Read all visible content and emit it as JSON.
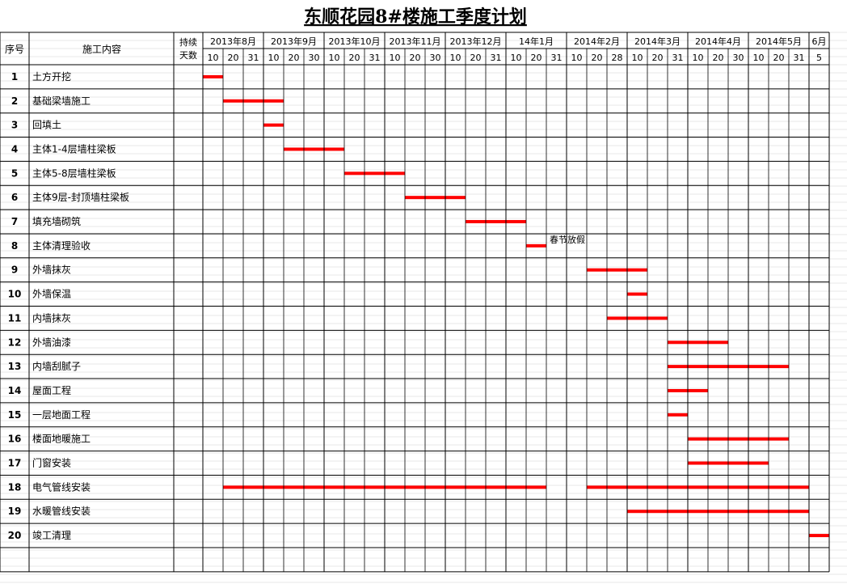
{
  "title": "东顺花园8#楼施工季度计划",
  "header": {
    "seq_label": "序号",
    "content_label": "施工内容",
    "duration_label_1": "持续",
    "duration_label_2": "天数"
  },
  "months": [
    "2013年8月",
    "2013年9月",
    "2013年10月",
    "2013年11月",
    "2013年12月",
    "14年1月",
    "2014年2月",
    "2014年3月",
    "2014年4月",
    "2014年5月",
    "6月"
  ],
  "day_ticks": [
    "10",
    "20",
    "31",
    "10",
    "20",
    "30",
    "10",
    "20",
    "31",
    "10",
    "20",
    "30",
    "10",
    "20",
    "31",
    "10",
    "20",
    "31",
    "10",
    "20",
    "28",
    "10",
    "20",
    "31",
    "10",
    "20",
    "30",
    "10",
    "20",
    "31",
    "5"
  ],
  "annotation": "春节放假",
  "colors": {
    "bar": "#ff0000",
    "grid": "#000000",
    "light_grid": "#d0d0d0"
  },
  "chart_data": {
    "type": "gantt",
    "title": "东顺花园8#楼施工季度计划",
    "x_unit": "period (10-day column)",
    "tasks": [
      {
        "seq": "1",
        "name": "土方开挖",
        "start": "2013-08-01",
        "end": "2013-08-10"
      },
      {
        "seq": "2",
        "name": "基础梁墙施工",
        "start": "2013-08-11",
        "end": "2013-09-10"
      },
      {
        "seq": "3",
        "name": "回填土",
        "start": "2013-09-01",
        "end": "2013-09-10"
      },
      {
        "seq": "4",
        "name": "主体1-4层墙柱梁板",
        "start": "2013-09-11",
        "end": "2013-10-10"
      },
      {
        "seq": "5",
        "name": "主体5-8层墙柱梁板",
        "start": "2013-10-11",
        "end": "2013-11-10"
      },
      {
        "seq": "6",
        "name": "主体9层-封顶墙柱梁板",
        "start": "2013-11-11",
        "end": "2013-12-10"
      },
      {
        "seq": "7",
        "name": "填充墙砌筑",
        "start": "2013-12-11",
        "end": "2014-01-10"
      },
      {
        "seq": "8",
        "name": "主体清理验收",
        "start": "2014-01-11",
        "end": "2014-01-20"
      },
      {
        "seq": "9",
        "name": "外墙抹灰",
        "start": "2014-02-11",
        "end": "2014-03-10"
      },
      {
        "seq": "10",
        "name": "外墙保温",
        "start": "2014-03-01",
        "end": "2014-03-10"
      },
      {
        "seq": "11",
        "name": "内墙抹灰",
        "start": "2014-02-21",
        "end": "2014-03-20"
      },
      {
        "seq": "12",
        "name": "外墙油漆",
        "start": "2014-03-21",
        "end": "2014-04-20"
      },
      {
        "seq": "13",
        "name": "内墙刮腻子",
        "start": "2014-03-21",
        "end": "2014-05-20"
      },
      {
        "seq": "14",
        "name": "屋面工程",
        "start": "2014-03-21",
        "end": "2014-04-10"
      },
      {
        "seq": "15",
        "name": "一层地面工程",
        "start": "2014-03-21",
        "end": "2014-03-31"
      },
      {
        "seq": "16",
        "name": "楼面地暖施工",
        "start": "2014-04-01",
        "end": "2014-05-20"
      },
      {
        "seq": "17",
        "name": "门窗安装",
        "start": "2014-04-01",
        "end": "2014-05-10"
      },
      {
        "seq": "18",
        "name": "电气管线安装",
        "segments": [
          {
            "start": "2013-08-11",
            "end": "2014-01-20"
          },
          {
            "start": "2014-02-11",
            "end": "2014-05-31"
          }
        ]
      },
      {
        "seq": "19",
        "name": "水暖管线安装",
        "start": "2014-03-01",
        "end": "2014-05-31"
      },
      {
        "seq": "20",
        "name": "竣工清理",
        "start": "2014-06-01",
        "end": "2014-06-05"
      }
    ]
  }
}
